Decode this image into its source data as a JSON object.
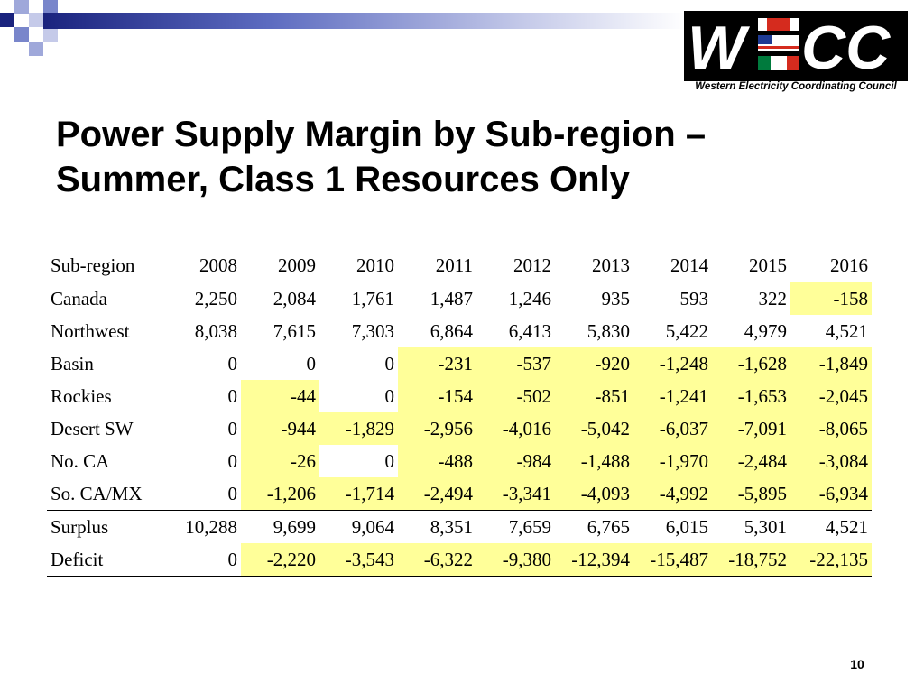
{
  "slide": {
    "title_line1": "Power Supply Margin by Sub-region –",
    "title_line2": "Summer, Class 1 Resources Only",
    "page_number": "10"
  },
  "logo": {
    "letters": "WECC",
    "caption": "Western Electricity Coordinating Council",
    "colors": {
      "background": "#000000",
      "letters": "#ffffff",
      "flag_red": "#d52b1e",
      "flag_blue": "#1f3a93",
      "flag_green": "#007a3d"
    }
  },
  "highlight_color": "#ffff99",
  "table": {
    "headers": [
      "Sub-region",
      "2008",
      "2009",
      "2010",
      "2011",
      "2012",
      "2013",
      "2014",
      "2015",
      "2016"
    ],
    "rows": [
      {
        "name": "Canada",
        "values": [
          "2,250",
          "2,084",
          "1,761",
          "1,487",
          "1,246",
          "935",
          "593",
          "322",
          "-158"
        ]
      },
      {
        "name": "Northwest",
        "values": [
          "8,038",
          "7,615",
          "7,303",
          "6,864",
          "6,413",
          "5,830",
          "5,422",
          "4,979",
          "4,521"
        ]
      },
      {
        "name": "Basin",
        "values": [
          "0",
          "0",
          "0",
          "-231",
          "-537",
          "-920",
          "-1,248",
          "-1,628",
          "-1,849"
        ]
      },
      {
        "name": "Rockies",
        "values": [
          "0",
          "-44",
          "0",
          "-154",
          "-502",
          "-851",
          "-1,241",
          "-1,653",
          "-2,045"
        ]
      },
      {
        "name": "Desert SW",
        "values": [
          "0",
          "-944",
          "-1,829",
          "-2,956",
          "-4,016",
          "-5,042",
          "-6,037",
          "-7,091",
          "-8,065"
        ]
      },
      {
        "name": "No. CA",
        "values": [
          "0",
          "-26",
          "0",
          "-488",
          "-984",
          "-1,488",
          "-1,970",
          "-2,484",
          "-3,084"
        ]
      },
      {
        "name": "So. CA/MX",
        "values": [
          "0",
          "-1,206",
          "-1,714",
          "-2,494",
          "-3,341",
          "-4,093",
          "-4,992",
          "-5,895",
          "-6,934"
        ]
      }
    ],
    "totals": [
      {
        "name": "Surplus",
        "values": [
          "10,288",
          "9,699",
          "9,064",
          "8,351",
          "7,659",
          "6,765",
          "6,015",
          "5,301",
          "4,521"
        ]
      },
      {
        "name": "Deficit",
        "values": [
          "0",
          "-2,220",
          "-3,543",
          "-6,322",
          "-9,380",
          "-12,394",
          "-15,487",
          "-18,752",
          "-22,135"
        ]
      }
    ]
  }
}
